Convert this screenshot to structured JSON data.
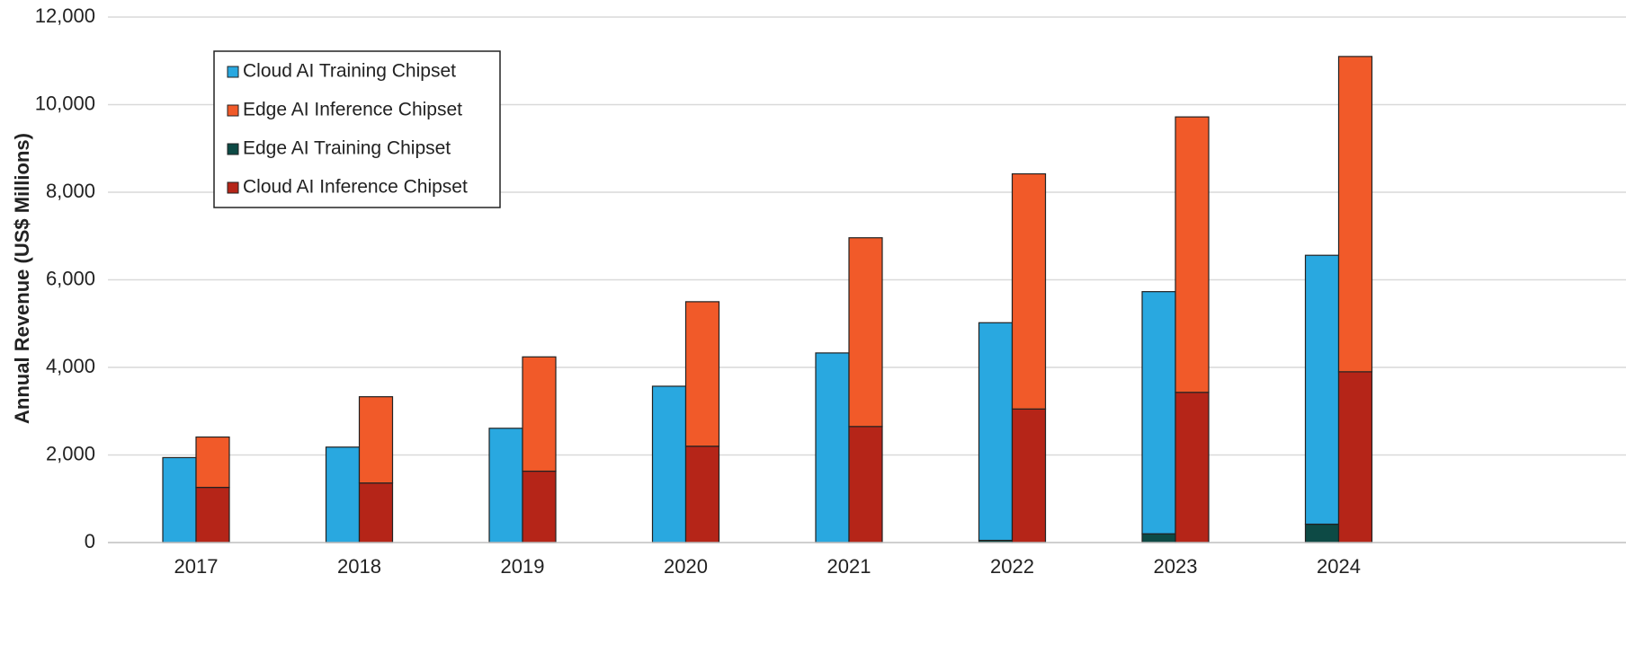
{
  "chart_data": {
    "type": "bar",
    "categories": [
      "2017",
      "2018",
      "2019",
      "2020",
      "2021",
      "2022",
      "2023",
      "2024"
    ],
    "ylabel": "Annual Revenue (US$ Millions)",
    "xlabel": "",
    "title": "",
    "ylim": [
      0,
      12000
    ],
    "yticks": [
      "0",
      "2,000",
      "4,000",
      "6,000",
      "8,000",
      "10,000",
      "12,000"
    ],
    "grid": true,
    "legend_position": "top-left",
    "stacks": [
      {
        "stack": "training",
        "series": [
          {
            "name": "Edge AI Training Chipset",
            "color": "#0d4a45",
            "values": [
              0,
              0,
              0,
              0,
              0,
              50,
              200,
              420
            ]
          },
          {
            "name": "Cloud AI Training Chipset",
            "color": "#29a8e0",
            "values": [
              1940,
              2180,
              2610,
              3570,
              4330,
              4970,
              5530,
              6140
            ]
          }
        ]
      },
      {
        "stack": "inference",
        "series": [
          {
            "name": "Cloud AI Inference Chipset",
            "color": "#b52518",
            "values": [
              1260,
              1360,
              1630,
              2200,
              2650,
              3050,
              3430,
              3900
            ]
          },
          {
            "name": "Edge AI Inference Chipset",
            "color": "#f15a29",
            "values": [
              1150,
              1970,
              2610,
              3300,
              4310,
              5370,
              6290,
              7200
            ]
          }
        ]
      }
    ],
    "legend": [
      {
        "label": "Cloud AI Training Chipset",
        "color": "#29a8e0"
      },
      {
        "label": "Edge AI Inference Chipset",
        "color": "#f15a29"
      },
      {
        "label": "Edge AI Training Chipset",
        "color": "#0d4a45"
      },
      {
        "label": "Cloud AI Inference Chipset",
        "color": "#b52518"
      }
    ],
    "gridline_color": "#d9d9d9",
    "bar_border_color": "#222222"
  }
}
